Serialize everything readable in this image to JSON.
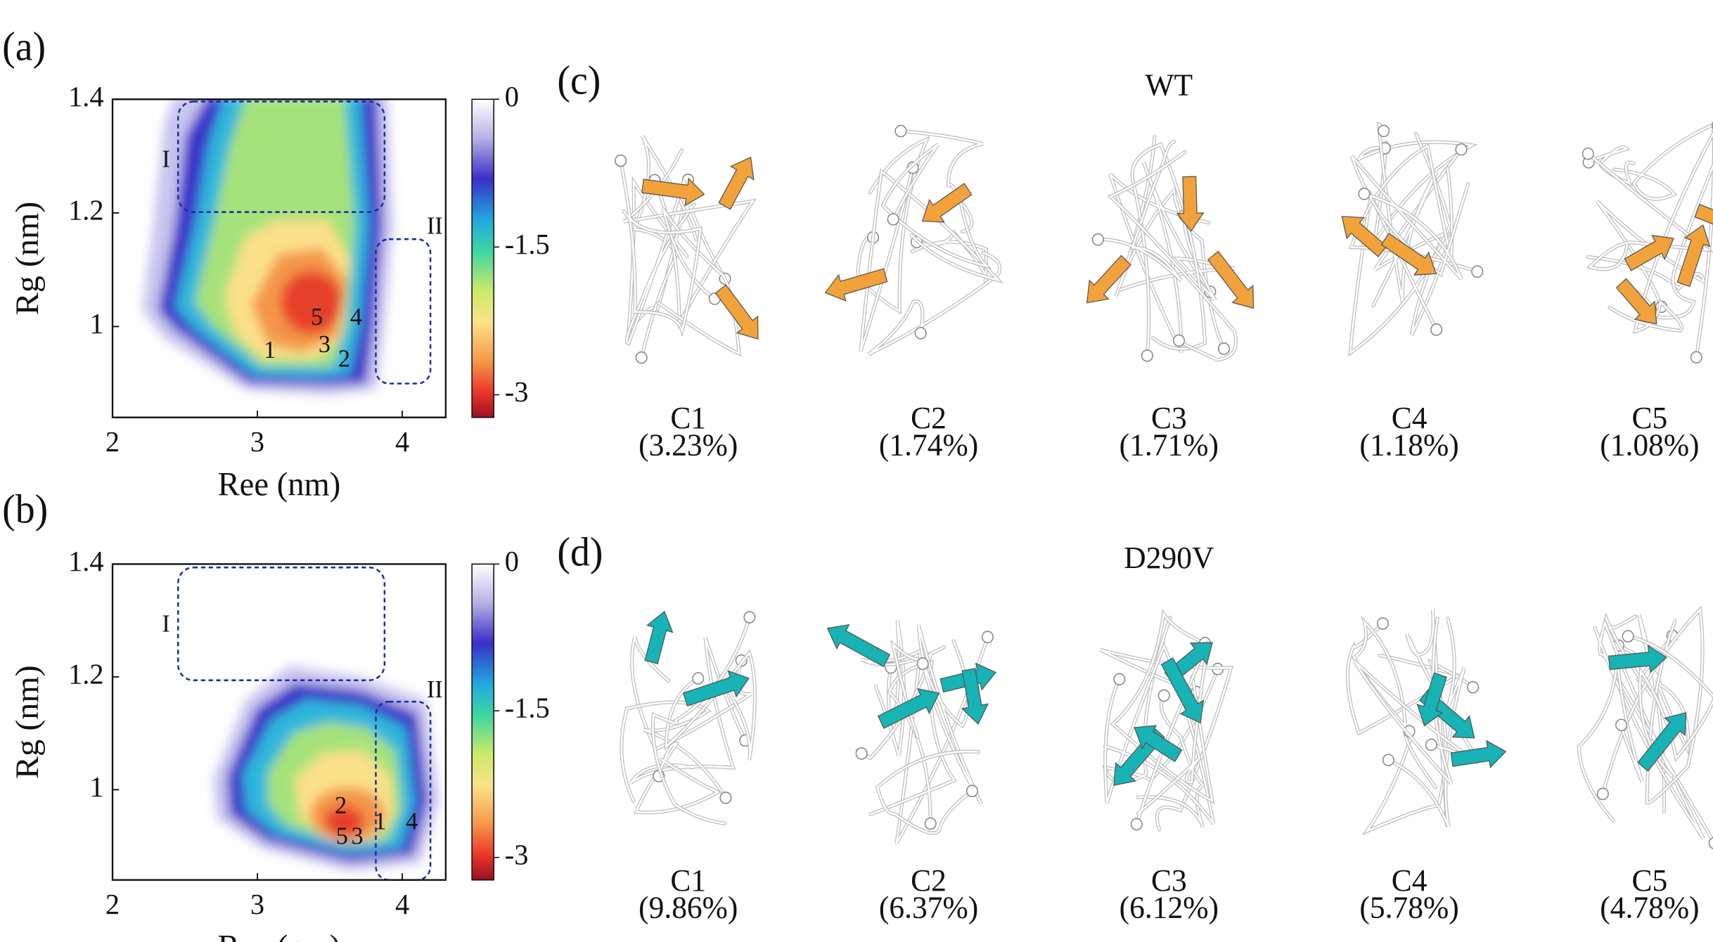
{
  "chart_data": [
    {
      "type": "heatmap",
      "panel_label": "(a)",
      "x_label": "Ree (nm)",
      "y_label": "Rg (nm)",
      "xlim": [
        2,
        4.3
      ],
      "ylim": [
        0.84,
        1.4
      ],
      "xticks": [
        2,
        3,
        4
      ],
      "yticks": [
        1,
        1.2,
        1.4
      ],
      "colorbar": {
        "lim": [
          -3.23,
          0
        ],
        "ticks": [
          0,
          -1.5,
          -3
        ]
      },
      "regions": [
        "I",
        "II"
      ],
      "annotations": [
        "1",
        "2",
        "3",
        "4",
        "5"
      ]
    },
    {
      "type": "heatmap",
      "panel_label": "(b)",
      "x_label": "Ree (nm)",
      "y_label": "Rg (nm)",
      "xlim": [
        2,
        4.3
      ],
      "ylim": [
        0.84,
        1.4
      ],
      "xticks": [
        2,
        3,
        4
      ],
      "yticks": [
        1,
        1.2,
        1.4
      ],
      "colorbar": {
        "lim": [
          -3.23,
          0
        ],
        "ticks": [
          0,
          -1.5,
          -3
        ]
      },
      "regions": [
        "I",
        "II"
      ],
      "annotations": [
        "1",
        "2",
        "3",
        "4",
        "5"
      ]
    }
  ],
  "panels": [
    {
      "label": "(c)",
      "title": "WT",
      "color": "#f2a23a",
      "clusters": [
        {
          "name": "C1",
          "population": "(3.23%)"
        },
        {
          "name": "C2",
          "population": "(1.74%)"
        },
        {
          "name": "C3",
          "population": "(1.71%)"
        },
        {
          "name": "C4",
          "population": "(1.18%)"
        },
        {
          "name": "C5",
          "population": "(1.08%)"
        }
      ]
    },
    {
      "label": "(d)",
      "title": "D290V",
      "color": "#17b3b5",
      "clusters": [
        {
          "name": "C1",
          "population": "(9.86%)"
        },
        {
          "name": "C2",
          "population": "(6.37%)"
        },
        {
          "name": "C3",
          "population": "(6.12%)"
        },
        {
          "name": "C4",
          "population": "(5.78%)"
        },
        {
          "name": "C5",
          "population": "(4.78%)"
        }
      ]
    }
  ]
}
